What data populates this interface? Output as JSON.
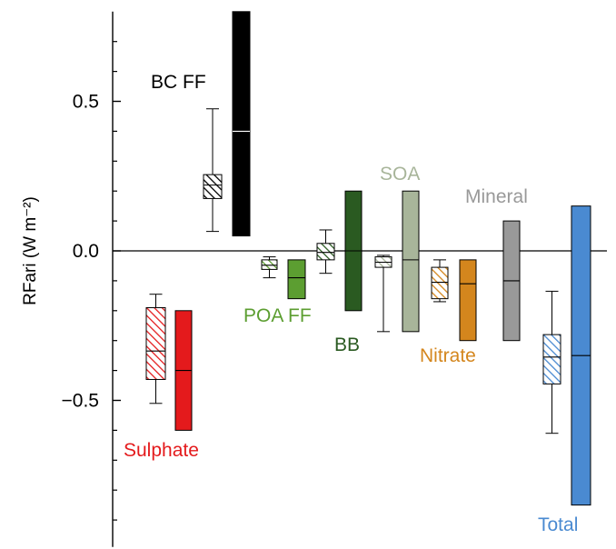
{
  "chart_data": {
    "type": "box",
    "title": "",
    "ylabel": "RFari (W m⁻²)",
    "ylim": [
      -0.99,
      0.8
    ],
    "yticks": [
      {
        "value": 0.5,
        "label": "0.5"
      },
      {
        "value": 0.0,
        "label": "0.0"
      },
      {
        "value": -0.5,
        "label": "−0.5"
      }
    ],
    "minor_yticks": [
      0.7,
      0.6,
      0.4,
      0.3,
      0.2,
      0.1,
      -0.1,
      -0.2,
      -0.3,
      -0.4,
      -0.6,
      -0.7,
      -0.8,
      -0.9
    ],
    "zero_line": true,
    "groups": [
      {
        "name": "Sulphate",
        "color": "#e41a1c",
        "model": {
          "whisker_low": -0.51,
          "q1": -0.43,
          "median": -0.335,
          "q3": -0.19,
          "whisker_high": -0.145
        },
        "assessed": {
          "low": -0.6,
          "median": -0.4,
          "high": -0.2
        }
      },
      {
        "name": "BC FF",
        "color": "#000000",
        "model": {
          "whisker_low": 0.065,
          "q1": 0.175,
          "median": 0.22,
          "q3": 0.255,
          "whisker_high": 0.475
        },
        "assessed": {
          "low": 0.05,
          "median": 0.4,
          "high": 0.8
        }
      },
      {
        "name": "POA FF",
        "color": "#5c9e31",
        "model": {
          "whisker_low": -0.09,
          "q1": -0.062,
          "median": -0.048,
          "q3": -0.03,
          "whisker_high": -0.02
        },
        "assessed": {
          "low": -0.16,
          "median": -0.09,
          "high": -0.03
        }
      },
      {
        "name": "BB",
        "color": "#2a5a21",
        "model": {
          "whisker_low": -0.075,
          "q1": -0.03,
          "median": -0.005,
          "q3": 0.025,
          "whisker_high": 0.07
        },
        "assessed": {
          "low": -0.2,
          "median": 0.0,
          "high": 0.2
        }
      },
      {
        "name": "SOA",
        "color": "#a8b59a",
        "model": {
          "whisker_low": -0.27,
          "q1": -0.055,
          "median": -0.038,
          "q3": -0.02,
          "whisker_high": -0.015
        },
        "assessed": {
          "low": -0.27,
          "median": -0.03,
          "high": 0.2
        }
      },
      {
        "name": "Nitrate",
        "color": "#d4861d",
        "model": {
          "whisker_low": -0.17,
          "q1": -0.16,
          "median": -0.105,
          "q3": -0.055,
          "whisker_high": -0.03
        },
        "assessed": {
          "low": -0.3,
          "median": -0.11,
          "high": -0.03
        }
      },
      {
        "name": "Mineral",
        "color": "#999999",
        "model": null,
        "assessed": {
          "low": -0.3,
          "median": -0.1,
          "high": 0.1
        }
      },
      {
        "name": "Total",
        "color": "#4a8ad1",
        "model": {
          "whisker_low": -0.61,
          "q1": -0.445,
          "median": -0.355,
          "q3": -0.28,
          "whisker_high": -0.135
        },
        "assessed": {
          "low": -0.85,
          "median": -0.35,
          "high": 0.15
        }
      }
    ]
  }
}
